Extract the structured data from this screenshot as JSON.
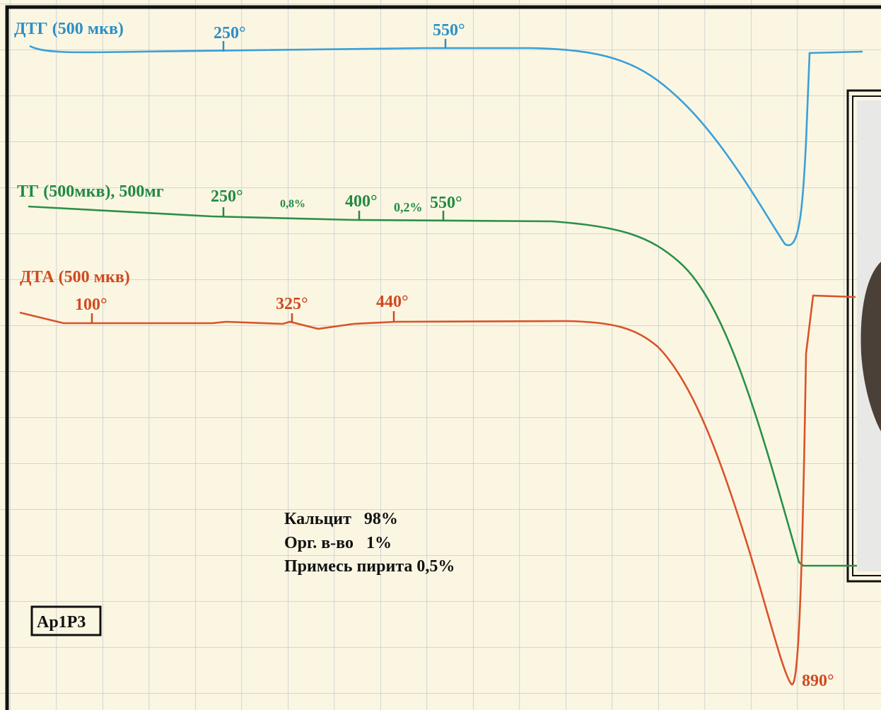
{
  "dtg": {
    "label": "ДТГ (500 мкв)",
    "marks": [
      "250°",
      "550°"
    ]
  },
  "tg": {
    "label": "ТГ (500мкв), 500мг",
    "marks": [
      "250°",
      "0,8%",
      "400°",
      "0,2%",
      "550°"
    ]
  },
  "dta": {
    "label": "ДТА (500 мкв)",
    "marks": [
      "100°",
      "325°",
      "440°",
      "890°"
    ]
  },
  "composition": [
    "Кальцит   98%",
    "Орг. в-во   1%",
    "Примесь пирита 0,5%"
  ],
  "sample": "Ар1Р3"
}
